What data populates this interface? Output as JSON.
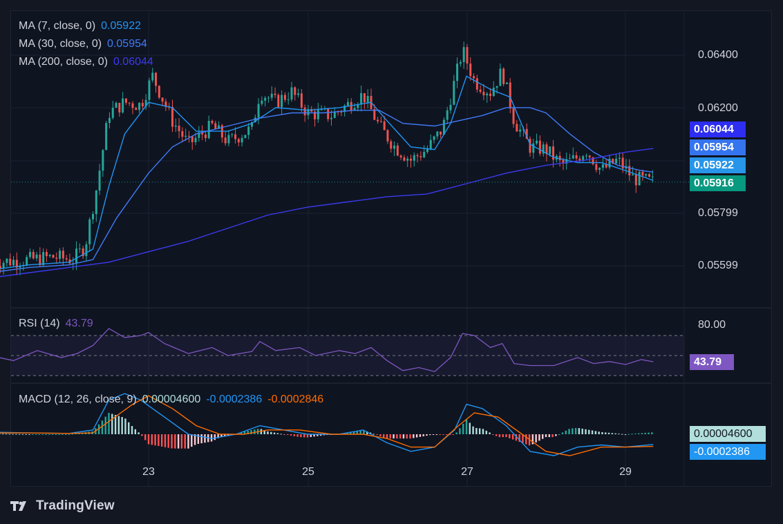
{
  "legend": {
    "ma7": {
      "label": "MA (7, close, 0)",
      "value": "0.05922",
      "color": "#2196f3"
    },
    "ma30": {
      "label": "MA (30, close, 0)",
      "value": "0.05954",
      "color": "#3f7cf7"
    },
    "ma200": {
      "label": "MA (200, close, 0)",
      "value": "0.06044",
      "color": "#3b3bf0"
    },
    "rsi": {
      "label": "RSI (14)",
      "value": "43.79",
      "color": "#7e57c2"
    },
    "macd": {
      "label": "MACD (12, 26, close, 9)",
      "hist": "0.00004600",
      "macd": "-0.0002386",
      "signal": "-0.0002846"
    }
  },
  "price_tags": [
    {
      "text": "0.06044",
      "color": "#2d2ef2"
    },
    {
      "text": "0.05954",
      "color": "#3574ef"
    },
    {
      "text": "0.05922",
      "color": "#2795e9"
    },
    {
      "text": "0.05916",
      "color": "#089981"
    }
  ],
  "rsi_tag": {
    "text": "43.79",
    "color": "#7e57c2"
  },
  "macd_tags": [
    {
      "text": "0.00004600",
      "color": "#b2dfdb",
      "text_color": "#131722"
    },
    {
      "text": "-0.0002386",
      "color": "#2196f3",
      "text_color": "#ffffff"
    }
  ],
  "brand": {
    "name": "TradingView"
  },
  "chart_data": [
    {
      "type": "candlestick",
      "title": "",
      "y_ticks": [
        "0.06400",
        "0.06200",
        "0.05799",
        "0.05599"
      ],
      "x_ticks": [
        "23",
        "25",
        "27",
        "29"
      ],
      "ylim": [
        0.0545,
        0.0665
      ],
      "x_range_days": [
        21.0,
        29.9
      ],
      "last_price": 0.05916,
      "colors": {
        "up": "#26a69a",
        "down": "#ef5350"
      },
      "series_overview": [
        {
          "t": 21.05,
          "v": 0.0561
        },
        {
          "t": 21.5,
          "v": 0.0562
        },
        {
          "t": 21.8,
          "v": 0.0563
        },
        {
          "t": 22.05,
          "v": 0.0562
        },
        {
          "t": 22.2,
          "v": 0.0567
        },
        {
          "t": 22.35,
          "v": 0.059
        },
        {
          "t": 22.5,
          "v": 0.0618
        },
        {
          "t": 22.7,
          "v": 0.0622
        },
        {
          "t": 22.9,
          "v": 0.0621
        },
        {
          "t": 23.05,
          "v": 0.0632
        },
        {
          "t": 23.3,
          "v": 0.0615
        },
        {
          "t": 23.5,
          "v": 0.0606
        },
        {
          "t": 23.8,
          "v": 0.0613
        },
        {
          "t": 24.0,
          "v": 0.0607
        },
        {
          "t": 24.3,
          "v": 0.0612
        },
        {
          "t": 24.4,
          "v": 0.0626
        },
        {
          "t": 24.6,
          "v": 0.0622
        },
        {
          "t": 24.8,
          "v": 0.0626
        },
        {
          "t": 25.0,
          "v": 0.0618
        },
        {
          "t": 25.3,
          "v": 0.0617
        },
        {
          "t": 25.5,
          "v": 0.0621
        },
        {
          "t": 25.7,
          "v": 0.0625
        },
        {
          "t": 25.9,
          "v": 0.0613
        },
        {
          "t": 26.1,
          "v": 0.0605
        },
        {
          "t": 26.3,
          "v": 0.06
        },
        {
          "t": 26.5,
          "v": 0.0604
        },
        {
          "t": 26.7,
          "v": 0.0612
        },
        {
          "t": 26.85,
          "v": 0.063
        },
        {
          "t": 26.95,
          "v": 0.0642
        },
        {
          "t": 27.1,
          "v": 0.063
        },
        {
          "t": 27.3,
          "v": 0.0626
        },
        {
          "t": 27.45,
          "v": 0.0634
        },
        {
          "t": 27.6,
          "v": 0.0615
        },
        {
          "t": 27.8,
          "v": 0.0605
        },
        {
          "t": 28.0,
          "v": 0.0604
        },
        {
          "t": 28.2,
          "v": 0.0598
        },
        {
          "t": 28.4,
          "v": 0.0601
        },
        {
          "t": 28.5,
          "v": 0.0604
        },
        {
          "t": 28.7,
          "v": 0.0596
        },
        {
          "t": 28.9,
          "v": 0.06
        },
        {
          "t": 29.1,
          "v": 0.0593
        },
        {
          "t": 29.35,
          "v": 0.05916
        }
      ],
      "moving_averages": [
        {
          "name": "MA (7, close, 0)",
          "color": "#2196f3",
          "last": 0.05922,
          "points": [
            [
              21.0,
              0.0558
            ],
            [
              21.5,
              0.056
            ],
            [
              22.0,
              0.0561
            ],
            [
              22.3,
              0.0566
            ],
            [
              22.5,
              0.059
            ],
            [
              22.7,
              0.061
            ],
            [
              23.0,
              0.0622
            ],
            [
              23.3,
              0.062
            ],
            [
              23.6,
              0.0611
            ],
            [
              24.0,
              0.0611
            ],
            [
              24.3,
              0.0614
            ],
            [
              24.6,
              0.062
            ],
            [
              25.0,
              0.0619
            ],
            [
              25.4,
              0.062
            ],
            [
              25.8,
              0.0622
            ],
            [
              26.0,
              0.0615
            ],
            [
              26.3,
              0.0605
            ],
            [
              26.6,
              0.0604
            ],
            [
              26.8,
              0.0614
            ],
            [
              27.0,
              0.0632
            ],
            [
              27.3,
              0.0627
            ],
            [
              27.55,
              0.0624
            ],
            [
              27.8,
              0.0606
            ],
            [
              28.1,
              0.0601
            ],
            [
              28.4,
              0.0599
            ],
            [
              28.7,
              0.0599
            ],
            [
              29.0,
              0.0596
            ],
            [
              29.35,
              0.05922
            ]
          ]
        },
        {
          "name": "MA (30, close, 0)",
          "color": "#3f7cf7",
          "last": 0.05954,
          "points": [
            [
              21.0,
              0.0557
            ],
            [
              21.5,
              0.0559
            ],
            [
              22.0,
              0.056
            ],
            [
              22.3,
              0.0562
            ],
            [
              22.6,
              0.0578
            ],
            [
              23.0,
              0.0595
            ],
            [
              23.3,
              0.0605
            ],
            [
              23.6,
              0.061
            ],
            [
              24.0,
              0.0613
            ],
            [
              24.4,
              0.0616
            ],
            [
              24.8,
              0.0618
            ],
            [
              25.2,
              0.0618
            ],
            [
              25.6,
              0.0619
            ],
            [
              25.9,
              0.0619
            ],
            [
              26.2,
              0.0614
            ],
            [
              26.6,
              0.0613
            ],
            [
              26.9,
              0.0615
            ],
            [
              27.2,
              0.0617
            ],
            [
              27.5,
              0.062
            ],
            [
              27.8,
              0.062
            ],
            [
              28.0,
              0.0618
            ],
            [
              28.3,
              0.061
            ],
            [
              28.6,
              0.0603
            ],
            [
              28.9,
              0.0598
            ],
            [
              29.2,
              0.0596
            ],
            [
              29.35,
              0.05954
            ]
          ]
        },
        {
          "name": "MA (200, close, 0)",
          "color": "#3b3bf0",
          "last": 0.06044,
          "points": [
            [
              21.0,
              0.0555
            ],
            [
              21.5,
              0.0557
            ],
            [
              22.0,
              0.0559
            ],
            [
              22.5,
              0.0561
            ],
            [
              23.0,
              0.0565
            ],
            [
              23.5,
              0.0569
            ],
            [
              24.0,
              0.0574
            ],
            [
              24.5,
              0.0579
            ],
            [
              25.0,
              0.0582
            ],
            [
              25.5,
              0.0584
            ],
            [
              26.0,
              0.0586
            ],
            [
              26.5,
              0.0587
            ],
            [
              27.0,
              0.0591
            ],
            [
              27.5,
              0.0595
            ],
            [
              28.0,
              0.0598
            ],
            [
              28.5,
              0.06
            ],
            [
              29.0,
              0.0603
            ],
            [
              29.35,
              0.06044
            ]
          ]
        }
      ]
    },
    {
      "type": "line",
      "title": "RSI (14)",
      "y_ticks": [
        "80.00"
      ],
      "levels": [
        70,
        50,
        30
      ],
      "ylim": [
        20,
        90
      ],
      "last": 43.79,
      "series": [
        {
          "name": "RSI (14)",
          "color": "#7e57c2",
          "points": [
            [
              21.0,
              50
            ],
            [
              21.3,
              45
            ],
            [
              21.6,
              55
            ],
            [
              21.9,
              48
            ],
            [
              22.1,
              52
            ],
            [
              22.3,
              60
            ],
            [
              22.5,
              77
            ],
            [
              22.7,
              68
            ],
            [
              22.9,
              70
            ],
            [
              23.0,
              73
            ],
            [
              23.2,
              62
            ],
            [
              23.5,
              52
            ],
            [
              23.8,
              58
            ],
            [
              24.0,
              50
            ],
            [
              24.3,
              54
            ],
            [
              24.4,
              64
            ],
            [
              24.6,
              55
            ],
            [
              24.9,
              58
            ],
            [
              25.1,
              50
            ],
            [
              25.4,
              55
            ],
            [
              25.6,
              52
            ],
            [
              25.8,
              58
            ],
            [
              26.0,
              45
            ],
            [
              26.2,
              35
            ],
            [
              26.4,
              38
            ],
            [
              26.6,
              34
            ],
            [
              26.8,
              48
            ],
            [
              26.95,
              72
            ],
            [
              27.1,
              70
            ],
            [
              27.3,
              58
            ],
            [
              27.45,
              62
            ],
            [
              27.6,
              42
            ],
            [
              27.8,
              40
            ],
            [
              28.1,
              40
            ],
            [
              28.4,
              48
            ],
            [
              28.6,
              42
            ],
            [
              28.8,
              44
            ],
            [
              29.0,
              41
            ],
            [
              29.2,
              46
            ],
            [
              29.35,
              43.79
            ]
          ]
        }
      ]
    },
    {
      "type": "bar",
      "title": "MACD (12, 26, close, 9)",
      "ylim": [
        -0.0009,
        0.0012
      ],
      "last": {
        "histogram": 4.6e-05,
        "macd": -0.0002386,
        "signal": -0.0002846
      },
      "series": [
        {
          "name": "MACD",
          "color": "#2196f3",
          "points": [
            [
              21.0,
              5e-05
            ],
            [
              21.5,
              3e-05
            ],
            [
              22.0,
              2e-05
            ],
            [
              22.3,
              0.0001
            ],
            [
              22.5,
              0.0008
            ],
            [
              22.7,
              0.00095
            ],
            [
              22.9,
              0.0008
            ],
            [
              23.2,
              0.0004
            ],
            [
              23.5,
              0.0
            ],
            [
              23.8,
              -0.0001
            ],
            [
              24.1,
              0.0
            ],
            [
              24.4,
              0.0002
            ],
            [
              24.7,
              0.0001
            ],
            [
              25.0,
              0.0
            ],
            [
              25.4,
              0.0
            ],
            [
              25.7,
              0.0001
            ],
            [
              26.0,
              -0.0002
            ],
            [
              26.3,
              -0.0004
            ],
            [
              26.6,
              -0.0003
            ],
            [
              26.85,
              0.0001
            ],
            [
              27.0,
              0.0007
            ],
            [
              27.2,
              0.0006
            ],
            [
              27.5,
              0.0002
            ],
            [
              27.8,
              -0.0004
            ],
            [
              28.1,
              -0.0005
            ],
            [
              28.4,
              -0.0003
            ],
            [
              28.7,
              -0.00025
            ],
            [
              29.0,
              -0.0003
            ],
            [
              29.35,
              -0.0002386
            ]
          ]
        },
        {
          "name": "Signal",
          "color": "#ff6d00",
          "points": [
            [
              21.0,
              3e-05
            ],
            [
              21.5,
              3e-05
            ],
            [
              22.0,
              2e-05
            ],
            [
              22.3,
              3e-05
            ],
            [
              22.5,
              0.0003
            ],
            [
              22.8,
              0.0007
            ],
            [
              23.0,
              0.0009
            ],
            [
              23.3,
              0.0006
            ],
            [
              23.6,
              0.0002
            ],
            [
              23.9,
              0.0
            ],
            [
              24.2,
              0.0
            ],
            [
              24.5,
              0.0001
            ],
            [
              24.9,
              0.0001
            ],
            [
              25.3,
              0.0
            ],
            [
              25.7,
              0.0
            ],
            [
              26.0,
              -0.0001
            ],
            [
              26.3,
              -0.0003
            ],
            [
              26.6,
              -0.0003
            ],
            [
              26.9,
              0.0002
            ],
            [
              27.1,
              0.0005
            ],
            [
              27.4,
              0.0004
            ],
            [
              27.7,
              0.0
            ],
            [
              28.0,
              -0.0004
            ],
            [
              28.3,
              -0.0005
            ],
            [
              28.7,
              -0.0003
            ],
            [
              29.0,
              -0.0003
            ],
            [
              29.35,
              -0.0002846
            ]
          ]
        }
      ],
      "histogram": {
        "colors": {
          "pos_strong": "#26a69a",
          "pos_weak": "#b2dfdb",
          "neg_strong": "#ff5252",
          "neg_weak": "#ffcdd2"
        }
      }
    }
  ]
}
